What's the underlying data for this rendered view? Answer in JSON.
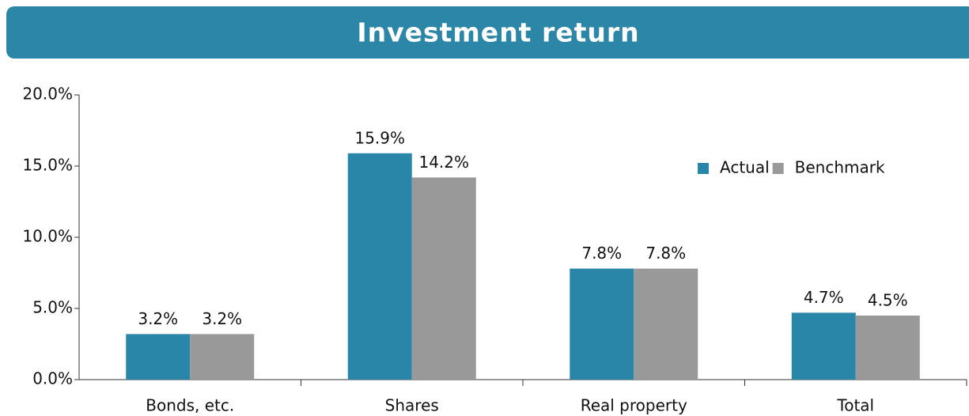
{
  "chart_data": {
    "type": "bar",
    "title": "Investment return",
    "categories": [
      "Bonds, etc.",
      "Shares",
      "Real property",
      "Total"
    ],
    "series": [
      {
        "name": "Actual",
        "color": "#2a86a9",
        "values": [
          3.2,
          15.9,
          7.8,
          4.7
        ],
        "value_labels": [
          "3.2%",
          "15.9%",
          "7.8%",
          "4.7%"
        ]
      },
      {
        "name": "Benchmark",
        "color": "#999999",
        "values": [
          3.2,
          14.2,
          7.8,
          4.5
        ],
        "value_labels": [
          "3.2%",
          "14.2%",
          "7.8%",
          "4.5%"
        ]
      }
    ],
    "ylim": [
      0,
      20
    ],
    "yticks": [
      {
        "value": 0,
        "label": "0.0%"
      },
      {
        "value": 5,
        "label": "5.0%"
      },
      {
        "value": 10,
        "label": "10.0%"
      },
      {
        "value": 15,
        "label": "15.0%"
      },
      {
        "value": 20,
        "label": "20.0%"
      }
    ],
    "grid": false,
    "legend": "upper-right"
  }
}
